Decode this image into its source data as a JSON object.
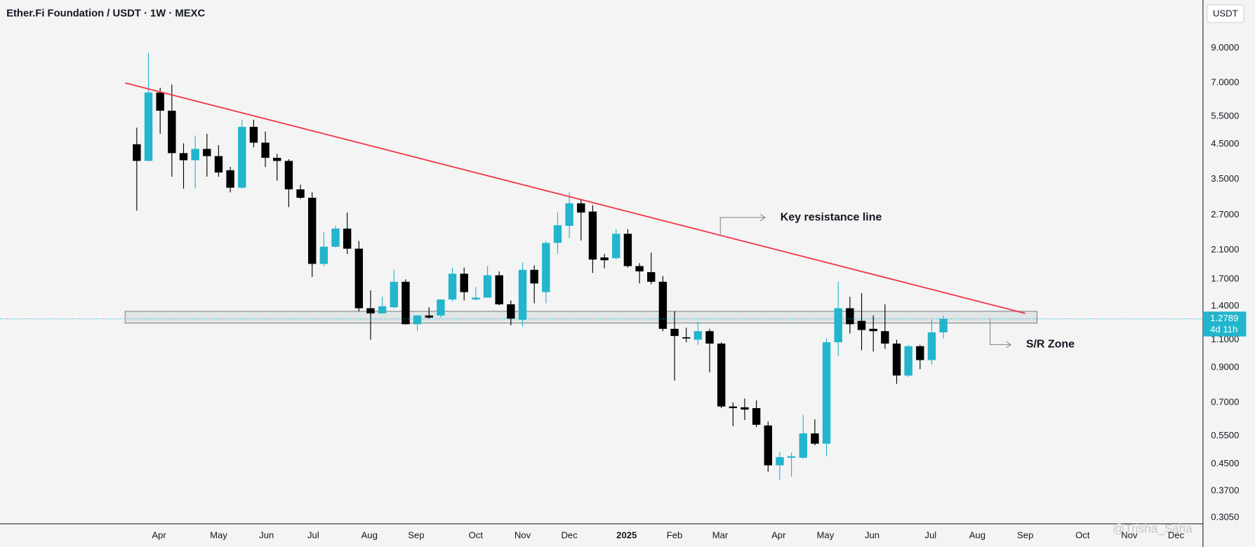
{
  "chart_data": {
    "type": "candlestick",
    "title": "Ether.Fi Foundation / USDT · 1W · MEXC",
    "currency": "USDT",
    "countdown": "4d 11h",
    "watermark": "@Trisha_Saha",
    "log_scale": true,
    "grid": false,
    "up_color": "#22b5cc",
    "down_color": "#000000",
    "open": [
      4.5,
      3.99,
      6.53,
      5.73,
      4.22,
      4.01,
      4.35,
      4.13,
      3.73,
      3.29,
      5.1,
      4.55,
      4.08,
      3.99,
      3.25,
      3.06,
      1.9,
      2.15,
      2.45,
      2.12,
      1.38,
      1.33,
      1.39,
      1.67,
      1.23,
      1.31,
      1.31,
      1.47,
      1.77,
      1.47,
      1.49,
      1.75,
      1.42,
      1.27,
      1.82,
      1.55,
      2.21,
      2.5,
      2.94,
      2.77,
      1.99,
      1.98,
      2.36,
      1.87,
      1.79,
      1.67,
      1.19,
      1.12,
      1.1,
      1.17,
      1.07,
      0.68,
      0.676,
      0.672,
      0.593,
      0.445,
      0.47,
      0.47,
      0.56,
      0.52,
      1.08,
      1.38,
      1.26,
      1.19,
      1.17,
      1.07,
      0.85,
      1.05,
      0.95,
      1.16
    ],
    "high": [
      5.07,
      8.69,
      6.76,
      6.92,
      4.53,
      4.79,
      4.85,
      4.47,
      3.82,
      5.37,
      5.37,
      4.93,
      4.2,
      4.04,
      3.36,
      3.18,
      2.39,
      2.5,
      2.75,
      2.24,
      1.57,
      1.5,
      1.82,
      1.7,
      1.31,
      1.39,
      1.47,
      1.85,
      1.85,
      1.61,
      1.87,
      1.8,
      1.46,
      1.92,
      1.88,
      2.24,
      2.75,
      3.18,
      3.03,
      2.9,
      2.04,
      2.44,
      2.44,
      1.91,
      2.06,
      1.74,
      1.35,
      1.2,
      1.25,
      1.19,
      1.08,
      0.7,
      0.72,
      0.71,
      0.61,
      0.49,
      0.488,
      0.64,
      0.62,
      1.11,
      1.67,
      1.5,
      1.54,
      1.31,
      1.42,
      1.1,
      1.06,
      1.06,
      1.27,
      1.31
    ],
    "low": [
      2.79,
      3.99,
      4.85,
      3.56,
      3.27,
      3.27,
      3.56,
      3.56,
      3.18,
      3.27,
      4.4,
      3.82,
      3.46,
      2.86,
      3.03,
      1.73,
      1.87,
      2.14,
      2.04,
      1.35,
      1.1,
      1.33,
      1.38,
      1.23,
      1.17,
      1.28,
      1.29,
      1.45,
      1.46,
      1.46,
      1.49,
      1.41,
      1.22,
      1.21,
      1.43,
      1.43,
      2.04,
      2.29,
      2.25,
      1.78,
      1.84,
      1.96,
      1.85,
      1.65,
      1.64,
      1.17,
      0.82,
      1.08,
      1.06,
      0.87,
      0.672,
      0.59,
      0.617,
      0.586,
      0.425,
      0.4,
      0.41,
      0.467,
      0.514,
      0.475,
      0.98,
      1.15,
      1.02,
      1.01,
      1.03,
      0.8,
      0.84,
      0.89,
      0.92,
      1.11
    ],
    "close": [
      3.99,
      6.53,
      5.73,
      4.22,
      4.01,
      4.35,
      4.13,
      3.67,
      3.29,
      5.1,
      4.55,
      4.08,
      3.99,
      3.25,
      3.06,
      1.9,
      2.15,
      2.45,
      2.12,
      1.38,
      1.33,
      1.4,
      1.67,
      1.23,
      1.31,
      1.29,
      1.47,
      1.77,
      1.55,
      1.49,
      1.75,
      1.42,
      1.28,
      1.82,
      1.65,
      2.21,
      2.51,
      2.94,
      2.75,
      1.96,
      1.95,
      2.36,
      1.87,
      1.8,
      1.67,
      1.19,
      1.13,
      1.11,
      1.17,
      1.07,
      0.68,
      0.672,
      0.665,
      0.596,
      0.445,
      0.472,
      0.475,
      0.56,
      0.52,
      1.08,
      1.38,
      1.23,
      1.18,
      1.17,
      1.07,
      0.85,
      1.05,
      0.95,
      1.16,
      1.2789
    ],
    "xlim": [
      -11.7,
      91.2
    ],
    "xticks": [
      {
        "value": 1.9,
        "label": "Apr"
      },
      {
        "value": 7.0,
        "label": "May"
      },
      {
        "value": 11.1,
        "label": "Jun"
      },
      {
        "value": 15.1,
        "label": "Jul"
      },
      {
        "value": 19.9,
        "label": "Aug"
      },
      {
        "value": 23.9,
        "label": "Sep"
      },
      {
        "value": 29.0,
        "label": "Oct"
      },
      {
        "value": 33.0,
        "label": "Nov"
      },
      {
        "value": 37.0,
        "label": "Dec"
      },
      {
        "value": 41.9,
        "label": "2025"
      },
      {
        "value": 46.0,
        "label": "Feb"
      },
      {
        "value": 49.9,
        "label": "Mar"
      },
      {
        "value": 54.9,
        "label": "Apr"
      },
      {
        "value": 58.9,
        "label": "May"
      },
      {
        "value": 62.9,
        "label": "Jun"
      },
      {
        "value": 67.9,
        "label": "Jul"
      },
      {
        "value": 71.9,
        "label": "Aug"
      },
      {
        "value": 76.0,
        "label": "Sep"
      },
      {
        "value": 80.9,
        "label": "Oct"
      },
      {
        "value": 84.9,
        "label": "Nov"
      },
      {
        "value": 88.9,
        "label": "Dec"
      }
    ],
    "ylim": [
      0.292,
      12.72
    ],
    "yticks": [
      {
        "value": 9,
        "label": "9.0000"
      },
      {
        "value": 7,
        "label": "7.0000"
      },
      {
        "value": 5.5,
        "label": "5.5000"
      },
      {
        "value": 4.5,
        "label": "4.5000"
      },
      {
        "value": 3.5,
        "label": "3.5000"
      },
      {
        "value": 2.7,
        "label": "2.7000"
      },
      {
        "value": 2.1,
        "label": "2.1000"
      },
      {
        "value": 1.7,
        "label": "1.7000"
      },
      {
        "value": 1.4,
        "label": "1.4000"
      },
      {
        "value": 1.1,
        "label": "1.1000"
      },
      {
        "value": 0.9,
        "label": "0.9000"
      },
      {
        "value": 0.7,
        "label": "0.7000"
      },
      {
        "value": 0.55,
        "label": "0.5500"
      },
      {
        "value": 0.45,
        "label": "0.4500"
      },
      {
        "value": 0.37,
        "label": "0.3700"
      },
      {
        "value": 0.305,
        "label": "0.3050"
      }
    ],
    "trendline": {
      "label": "Key resistance line",
      "color": "#f23645",
      "x": [
        -1.0,
        76.0
      ],
      "y": [
        7.0,
        1.33
      ]
    },
    "zone": {
      "label": "S/R Zone",
      "x": [
        -1.0,
        77.0
      ],
      "y": [
        1.24,
        1.35
      ]
    }
  }
}
